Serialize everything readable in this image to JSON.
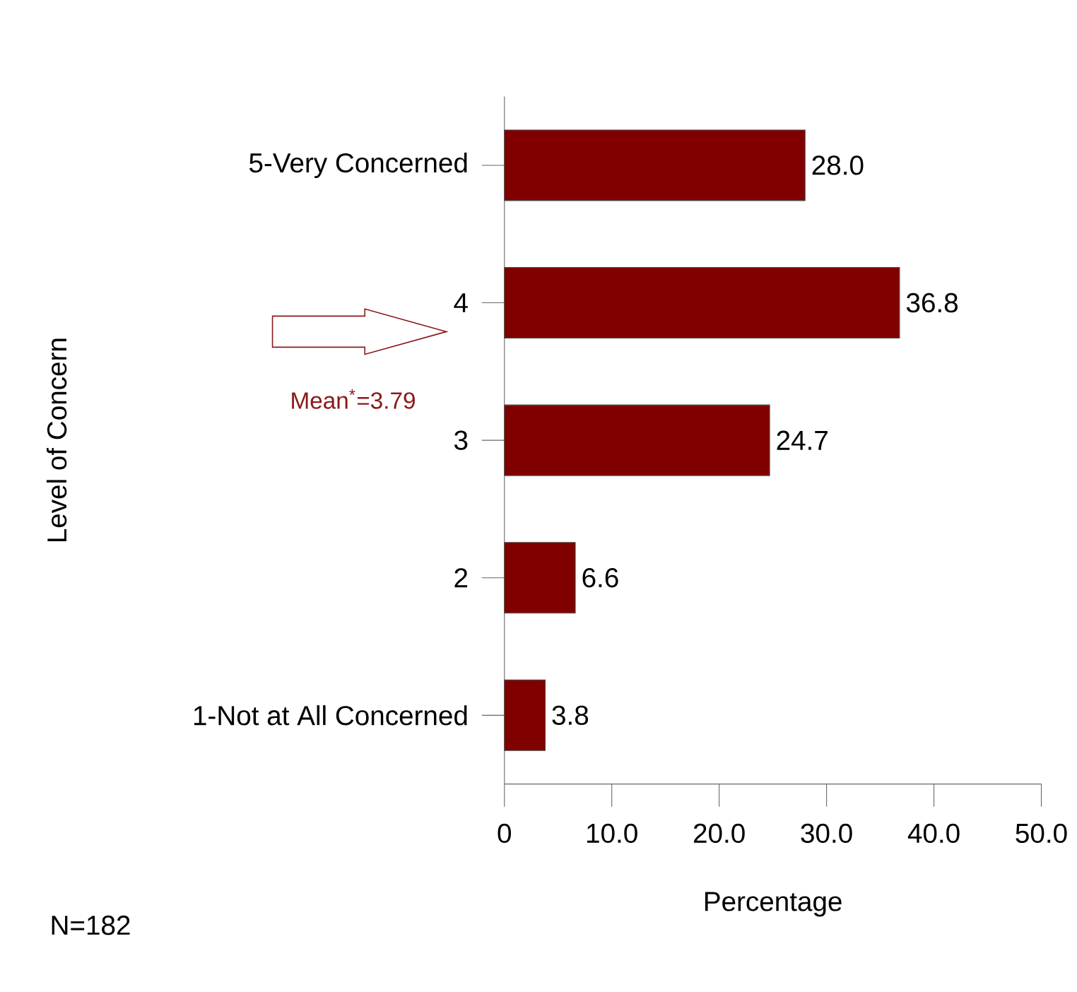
{
  "chart_data": {
    "type": "bar",
    "orientation": "horizontal",
    "categories": [
      "5-Very Concerned",
      "4",
      "3",
      "2",
      "1-Not at All Concerned"
    ],
    "values": [
      28.0,
      36.8,
      24.7,
      6.6,
      3.8
    ],
    "value_labels": [
      "28.0",
      "36.8",
      "24.7",
      "6.6",
      "3.8"
    ],
    "color": "#800000",
    "xlim": [
      0,
      50
    ],
    "xticks": [
      0,
      {
        "value": 10,
        "label": "10.0"
      },
      {
        "value": 20,
        "label": "20.0"
      },
      {
        "value": 30,
        "label": "30.0"
      },
      {
        "value": 40,
        "label": "40.0"
      },
      {
        "value": 50,
        "label": "50.0"
      }
    ],
    "xlabel": "Percentage",
    "ylabel": "Level of Concern",
    "annotations": [
      "Mean$^{*}$=3.79",
      "N=182"
    ]
  }
}
